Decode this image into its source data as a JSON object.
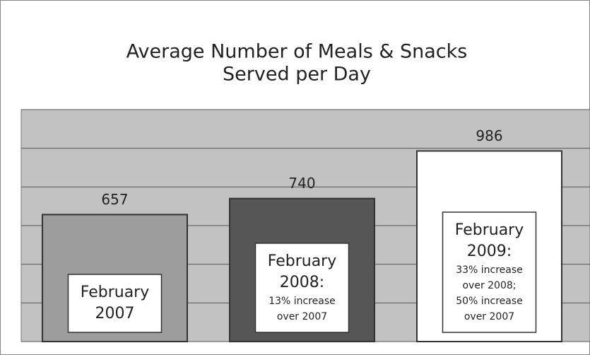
{
  "chart_data": {
    "type": "bar",
    "title": [
      "Average Number of Meals & Snacks",
      "Served per Day"
    ],
    "categories": [
      "February 2007",
      "February 2008",
      "February 2009"
    ],
    "values": [
      657,
      740,
      986
    ],
    "colors": [
      "#9d9d9d",
      "#565656",
      "#ffffff"
    ],
    "annotations": [
      {
        "lines": [
          "February",
          "2007"
        ]
      },
      {
        "lines": [
          "February",
          "2008:"
        ],
        "notes": [
          "13% increase",
          "over 2007"
        ]
      },
      {
        "lines": [
          "February",
          "2009:"
        ],
        "notes": [
          "33% increase",
          "over 2008;",
          "50% increase",
          "over 2007"
        ]
      }
    ],
    "ylim": [
      0,
      1200
    ],
    "yticks": [
      0,
      200,
      400,
      600,
      800,
      1000,
      1200
    ],
    "grid": true
  }
}
